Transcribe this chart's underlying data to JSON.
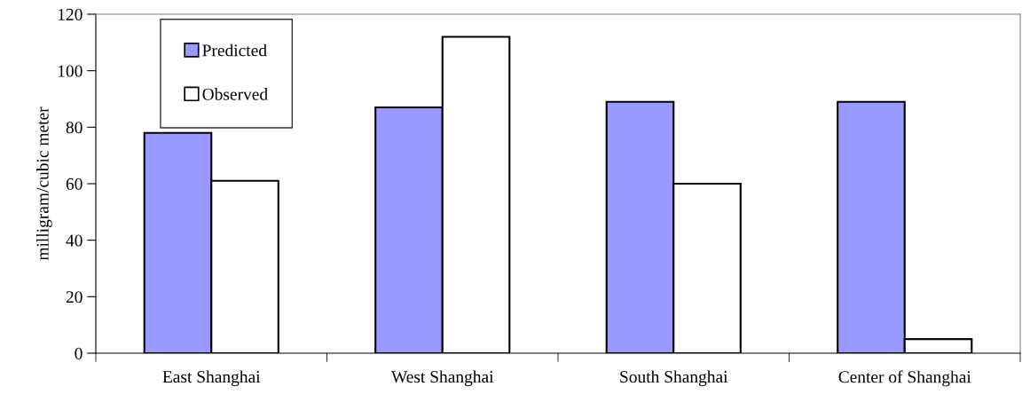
{
  "chart_data": {
    "type": "bar",
    "ylabel": "milligram/cubic meter",
    "categories": [
      "East Shanghai",
      "West Shanghai",
      "South Shanghai",
      "Center of Shanghai"
    ],
    "series": [
      {
        "name": "Predicted",
        "color": "#9999ff",
        "values": [
          78,
          87,
          89,
          89
        ]
      },
      {
        "name": "Observed",
        "color": "#ffffff",
        "values": [
          61,
          112,
          60,
          5
        ]
      }
    ],
    "ylim": [
      0,
      120
    ],
    "yticks": [
      0,
      20,
      40,
      60,
      80,
      100,
      120
    ],
    "grid": false,
    "legend": "top left"
  }
}
